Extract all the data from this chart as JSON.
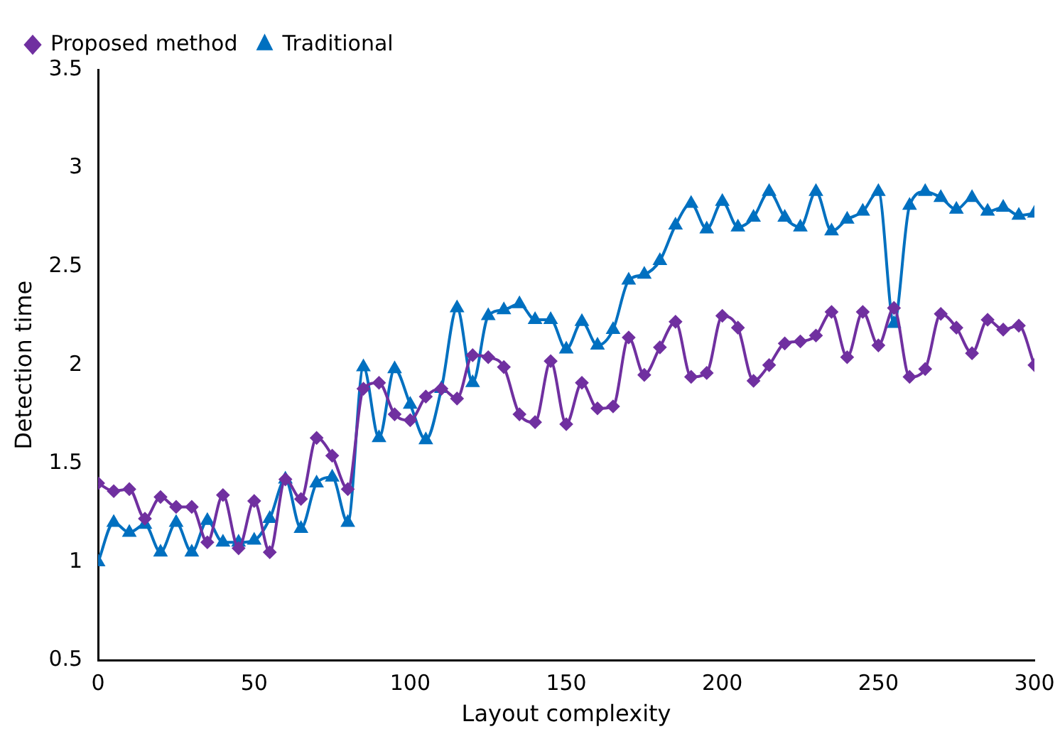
{
  "chart_data": {
    "type": "line",
    "xlabel": "Layout complexity",
    "ylabel": "Detection time",
    "x": [
      0,
      5,
      10,
      15,
      20,
      25,
      30,
      35,
      40,
      45,
      50,
      55,
      60,
      65,
      70,
      75,
      80,
      85,
      90,
      95,
      100,
      105,
      110,
      115,
      120,
      125,
      130,
      135,
      140,
      145,
      150,
      155,
      160,
      165,
      170,
      175,
      180,
      185,
      190,
      195,
      200,
      205,
      210,
      215,
      220,
      225,
      230,
      235,
      240,
      245,
      250,
      255,
      260,
      265,
      270,
      275,
      280,
      285,
      290,
      295,
      300
    ],
    "series": [
      {
        "name": "Proposed method",
        "color": "#7030a0",
        "marker": "diamond",
        "values": [
          1.4,
          1.36,
          1.37,
          1.22,
          1.33,
          1.28,
          1.28,
          1.1,
          1.34,
          1.07,
          1.31,
          1.05,
          1.42,
          1.32,
          1.63,
          1.54,
          1.37,
          1.88,
          1.91,
          1.75,
          1.72,
          1.84,
          1.88,
          1.83,
          2.05,
          2.04,
          1.99,
          1.75,
          1.71,
          2.02,
          1.7,
          1.91,
          1.78,
          1.79,
          2.14,
          1.95,
          2.09,
          2.22,
          1.94,
          1.96,
          2.25,
          2.19,
          1.92,
          2.0,
          2.11,
          2.12,
          2.15,
          2.27,
          2.04,
          2.27,
          2.1,
          2.29,
          1.94,
          1.98,
          2.26,
          2.19,
          2.06,
          2.23,
          2.18,
          2.2,
          2.0
        ]
      },
      {
        "name": "Traditional",
        "color": "#0070c0",
        "marker": "triangle",
        "values": [
          1.0,
          1.2,
          1.15,
          1.19,
          1.05,
          1.2,
          1.05,
          1.21,
          1.1,
          1.1,
          1.11,
          1.22,
          1.42,
          1.17,
          1.4,
          1.43,
          1.2,
          1.99,
          1.63,
          1.98,
          1.8,
          1.62,
          1.88,
          2.29,
          1.91,
          2.25,
          2.28,
          2.31,
          2.23,
          2.23,
          2.08,
          2.22,
          2.1,
          2.18,
          2.43,
          2.46,
          2.53,
          2.71,
          2.82,
          2.69,
          2.83,
          2.7,
          2.75,
          2.88,
          2.75,
          2.7,
          2.88,
          2.68,
          2.74,
          2.78,
          2.88,
          2.21,
          2.81,
          2.88,
          2.85,
          2.79,
          2.85,
          2.78,
          2.8,
          2.76,
          2.77
        ]
      }
    ],
    "xlim": [
      0,
      300
    ],
    "xticks": [
      0,
      50,
      100,
      150,
      200,
      250,
      300
    ],
    "ylim": [
      0.5,
      3.5
    ],
    "yticks": [
      0.5,
      1,
      1.5,
      2,
      2.5,
      3,
      3.5
    ],
    "grid": false,
    "legend": "top left",
    "line_style": "solid"
  }
}
